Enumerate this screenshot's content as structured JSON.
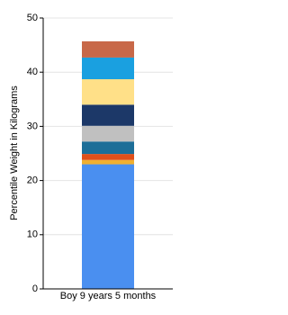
{
  "chart_data": {
    "type": "stacked_bar",
    "y_label": "Percentile Weight in Kilograms",
    "categories": [
      "Boy 9 years 5 months"
    ],
    "series": [
      {
        "color": "#4a8ff0",
        "values": [
          23
        ]
      },
      {
        "color": "#f0b030",
        "values": [
          0.8
        ]
      },
      {
        "color": "#e0501a",
        "values": [
          1.1
        ]
      },
      {
        "color": "#1c6e98",
        "values": [
          2.3
        ]
      },
      {
        "color": "#c0c0c0",
        "values": [
          2.9
        ]
      },
      {
        "color": "#1c3868",
        "values": [
          3.9
        ]
      },
      {
        "color": "#ffe088",
        "values": [
          4.7
        ]
      },
      {
        "color": "#1aa0e0",
        "values": [
          4
        ]
      },
      {
        "color": "#c86848",
        "values": [
          3
        ]
      }
    ],
    "ylim": [
      0,
      50
    ],
    "yticks": [
      0,
      10,
      20,
      30,
      40,
      50
    ],
    "grid": true
  }
}
